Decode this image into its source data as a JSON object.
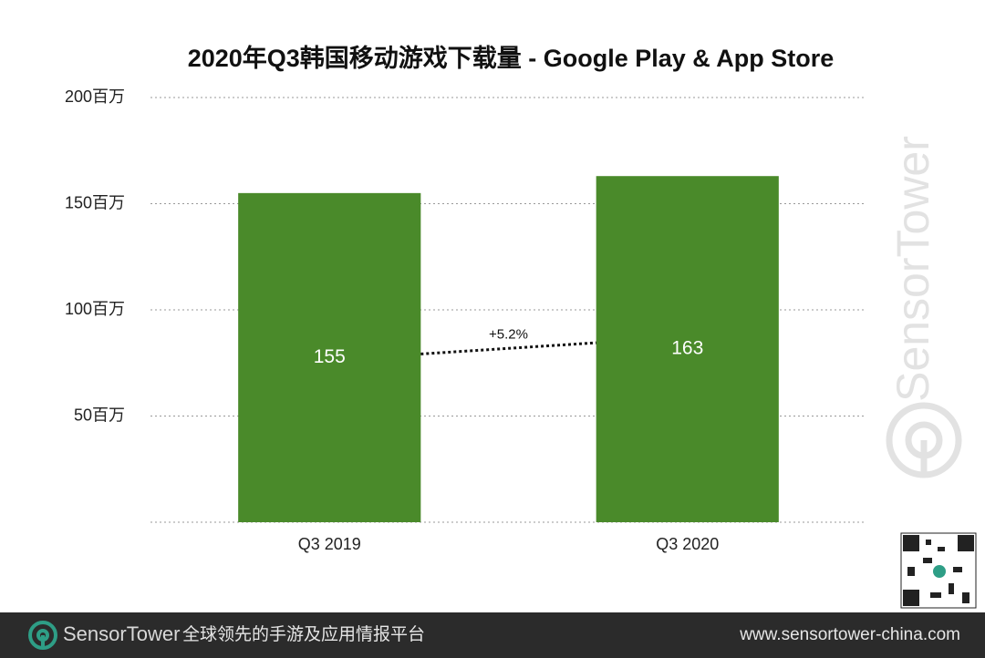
{
  "chart_data": {
    "type": "bar",
    "title": "2020年Q3韩国移动游戏下载量 - Google Play & App Store",
    "categories": [
      "Q3  2019",
      "Q3 2020"
    ],
    "values": [
      155,
      163
    ],
    "color": "#4a8a2a",
    "ylim": [
      0,
      200
    ],
    "yticks": [
      {
        "value": 50,
        "label": "50百万"
      },
      {
        "value": 100,
        "label": "100百万"
      },
      {
        "value": 150,
        "label": "150百万"
      },
      {
        "value": 200,
        "label": "200百万"
      }
    ],
    "grid": true,
    "annotation": "+5.2%",
    "watermark": "SensorTower"
  },
  "footer": {
    "brand": "SensorTower",
    "tagline": "全球领先的手游及应用情报平台",
    "url": "www.sensortower-china.com"
  }
}
